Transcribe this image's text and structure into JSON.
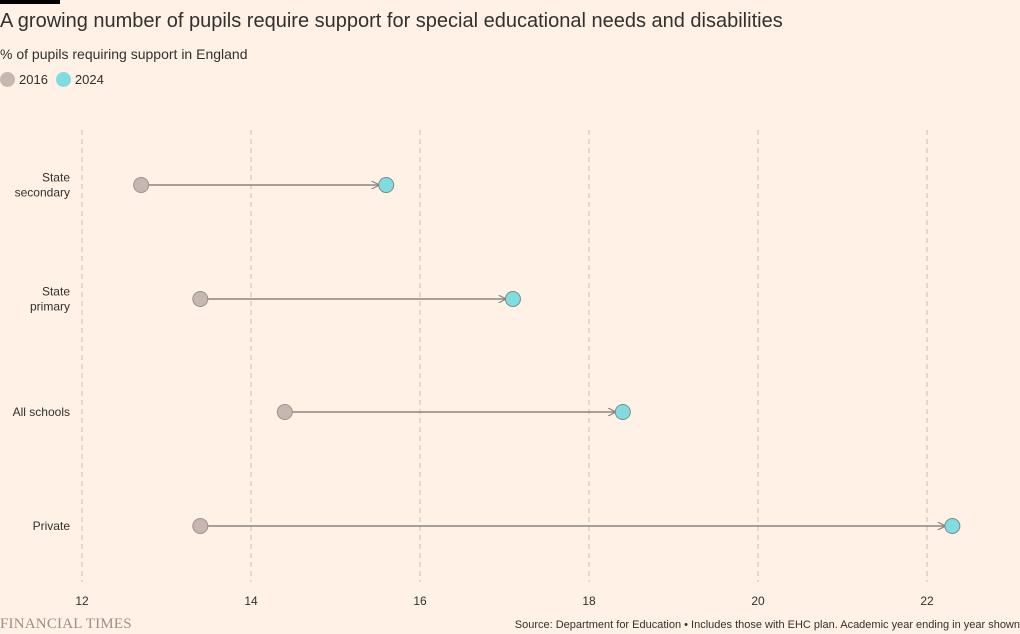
{
  "header": {
    "title": "A growing number of pupils require support for special educational needs and disabilities",
    "subtitle": "% of pupils requiring support in England"
  },
  "legend": {
    "items": [
      {
        "label": "2016",
        "color": "#c4b8b0"
      },
      {
        "label": "2024",
        "color": "#7fdde0"
      }
    ]
  },
  "chart_data": {
    "type": "dumbbell",
    "categories": [
      "State secondary",
      "State primary",
      "All schools",
      "Private"
    ],
    "category_labels": [
      [
        "State",
        "secondary"
      ],
      [
        "State",
        "primary"
      ],
      [
        "All schools"
      ],
      [
        "Private"
      ]
    ],
    "series": [
      {
        "name": "2016",
        "values": [
          12.7,
          13.4,
          14.4,
          13.4
        ],
        "color": "#c4b8b0"
      },
      {
        "name": "2024",
        "values": [
          15.6,
          17.1,
          18.4,
          22.3
        ],
        "color": "#7fdde0"
      }
    ],
    "xlim": [
      12,
      22
    ],
    "xticks": [
      "12",
      "14",
      "16",
      "18",
      "20",
      "22"
    ],
    "grid": true,
    "legend_position": "top-left"
  },
  "footer": {
    "brand": "FINANCIAL TIMES",
    "source": "Source: Department for Education • Includes those with EHC plan. Academic year ending in year shown"
  }
}
